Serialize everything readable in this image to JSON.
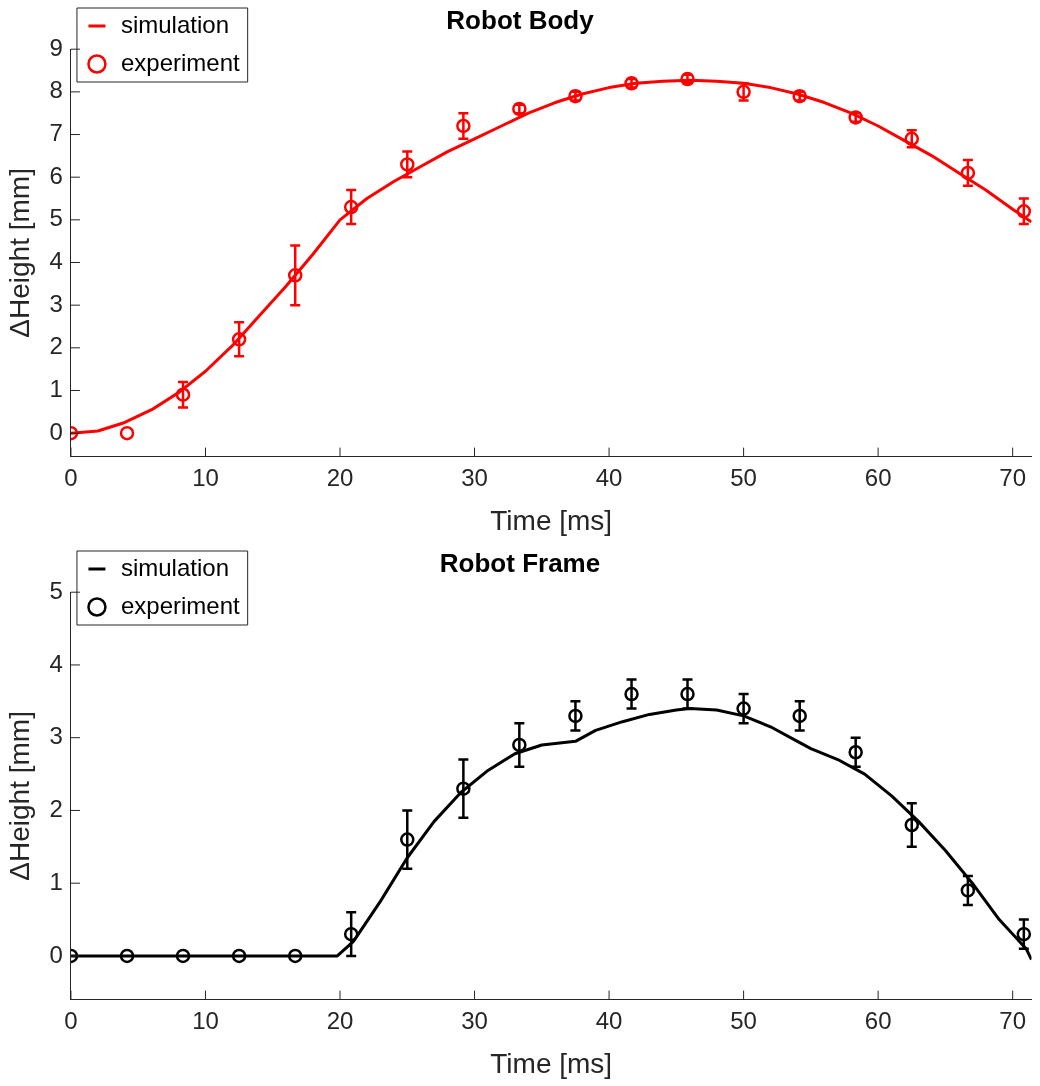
{
  "chart_data": [
    {
      "type": "line",
      "title": "Robot Body",
      "xlabel": "Time [ms]",
      "ylabel": "ΔHeight [mm]",
      "xlim": [
        0,
        71.4
      ],
      "xticks": [
        0,
        10,
        20,
        30,
        40,
        50,
        60,
        70
      ],
      "ylim": [
        -0.55,
        9
      ],
      "yticks": [
        0,
        1,
        2,
        3,
        4,
        5,
        6,
        7,
        8,
        9
      ],
      "grid": false,
      "legend": "top left",
      "series": [
        {
          "name": "simulation",
          "type": "line",
          "color": "#ff0000",
          "marker": "none",
          "line_style": "solid",
          "x": [
            0,
            2,
            4,
            6,
            8,
            10,
            12,
            14,
            16,
            18,
            20,
            22,
            24,
            26,
            28,
            30,
            32,
            34,
            36,
            38,
            40,
            42,
            44,
            46,
            48,
            50,
            52,
            54,
            56,
            58,
            60,
            62,
            64,
            66,
            68,
            70,
            71.4
          ],
          "values": [
            0,
            0.05,
            0.25,
            0.55,
            0.95,
            1.45,
            2.05,
            2.75,
            3.45,
            4.2,
            5.0,
            5.5,
            5.9,
            6.25,
            6.6,
            6.9,
            7.2,
            7.5,
            7.75,
            7.95,
            8.1,
            8.2,
            8.25,
            8.27,
            8.25,
            8.2,
            8.1,
            7.95,
            7.75,
            7.5,
            7.2,
            6.85,
            6.5,
            6.1,
            5.7,
            5.25,
            4.95
          ]
        },
        {
          "name": "experiment",
          "type": "scatter",
          "color": "#ff0000",
          "marker": "circle",
          "x": [
            0,
            4.17,
            8.33,
            12.5,
            16.67,
            20.83,
            25,
            29.17,
            33.33,
            37.5,
            41.67,
            45.83,
            50,
            54.17,
            58.33,
            62.5,
            66.67,
            70.83
          ],
          "values": [
            0,
            0,
            0.9,
            2.2,
            3.7,
            5.3,
            6.3,
            7.2,
            7.6,
            7.9,
            8.2,
            8.3,
            8.0,
            7.9,
            7.4,
            6.9,
            6.1,
            5.2
          ],
          "errors": [
            null,
            null,
            0.3,
            0.4,
            0.7,
            0.4,
            0.3,
            0.3,
            0.1,
            0.1,
            0.1,
            0.1,
            0.2,
            0.1,
            0.1,
            0.2,
            0.3,
            0.3
          ]
        }
      ]
    },
    {
      "type": "line",
      "title": "Robot Frame",
      "xlabel": "Time [ms]",
      "ylabel": "ΔHeight [mm]",
      "xlim": [
        0,
        71.4
      ],
      "xticks": [
        0,
        10,
        20,
        30,
        40,
        50,
        60,
        70
      ],
      "ylim": [
        -0.6,
        5
      ],
      "yticks": [
        0,
        1,
        2,
        3,
        4,
        5
      ],
      "grid": false,
      "legend": "top left",
      "series": [
        {
          "name": "simulation",
          "type": "line",
          "color": "#000000",
          "marker": "none",
          "line_style": "solid",
          "x": [
            0,
            19.8,
            21,
            23,
            25,
            27,
            29,
            31,
            33,
            35,
            37.5,
            39,
            41,
            43,
            45,
            46,
            48,
            50,
            52,
            54,
            55,
            57,
            59,
            61,
            63,
            65,
            67,
            69,
            71,
            71.4
          ],
          "values": [
            0,
            0,
            0.2,
            0.75,
            1.35,
            1.85,
            2.25,
            2.55,
            2.78,
            2.9,
            2.95,
            3.1,
            3.22,
            3.32,
            3.38,
            3.4,
            3.38,
            3.3,
            3.15,
            2.95,
            2.85,
            2.7,
            2.5,
            2.2,
            1.85,
            1.45,
            1.0,
            0.5,
            0.1,
            -0.05
          ]
        },
        {
          "name": "experiment",
          "type": "scatter",
          "color": "#000000",
          "marker": "circle",
          "x": [
            0,
            4.17,
            8.33,
            12.5,
            16.67,
            20.83,
            25,
            29.17,
            33.33,
            37.5,
            41.67,
            45.83,
            50,
            54.17,
            58.33,
            62.5,
            66.67,
            70.83
          ],
          "values": [
            0,
            0,
            0,
            0,
            0,
            0.3,
            1.6,
            2.3,
            2.9,
            3.3,
            3.6,
            3.6,
            3.4,
            3.3,
            2.8,
            1.8,
            0.9,
            0.3
          ],
          "errors": [
            null,
            null,
            null,
            null,
            null,
            0.3,
            0.4,
            0.4,
            0.3,
            0.2,
            0.2,
            0.2,
            0.2,
            0.2,
            0.2,
            0.3,
            0.2,
            0.2
          ]
        }
      ]
    }
  ]
}
